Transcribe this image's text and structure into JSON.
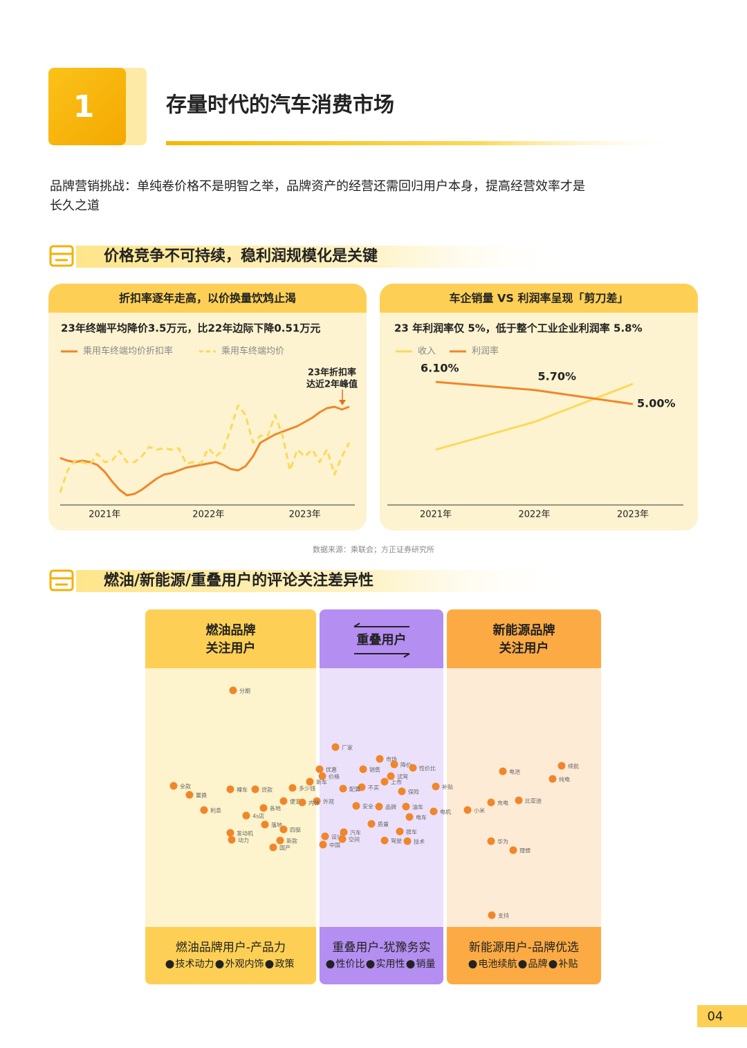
{
  "header": {
    "number": "1",
    "title": "存量时代的汽车消费市场"
  },
  "intro": [
    "品牌营销挑战：单纯卷价格不是明智之举，品牌资产的经营还需回归用户本身，提高经营效率才是",
    "长久之道"
  ],
  "section1": {
    "title": "价格竞争不可持续，稳利润规模化是关键"
  },
  "chart_data": [
    {
      "type": "line",
      "title": "折扣率逐年走高，以价换量饮鸩止渴",
      "subtitle": "23年终端平均降价3.5万元，比22年边际下降0.51万元",
      "annotation": [
        "23年折扣率",
        "达近2年峰值"
      ],
      "categories": [
        null,
        null,
        null,
        null,
        null,
        null,
        "2021年",
        null,
        null,
        null,
        null,
        null,
        null,
        null,
        null,
        null,
        null,
        null,
        null,
        null,
        "2022年",
        null,
        null,
        null,
        null,
        null,
        null,
        null,
        null,
        null,
        null,
        null,
        null,
        "2023年",
        null,
        null,
        null,
        null,
        null,
        null
      ],
      "ylim": [
        0,
        100
      ],
      "series": [
        {
          "name": "乘用车终端均价折扣率",
          "color": "#f0862a",
          "dash": false,
          "values": [
            34,
            32,
            31,
            32,
            31,
            29,
            24,
            17,
            11,
            7,
            8,
            11,
            15,
            19,
            22,
            23,
            25,
            27,
            28,
            29,
            30,
            31,
            29,
            26,
            25,
            28,
            35,
            45,
            48,
            51,
            53,
            55,
            57,
            60,
            63,
            67,
            70,
            71,
            69,
            71
          ]
        },
        {
          "name": "乘用车终端均价",
          "color": "#fbd95a",
          "dash": true,
          "values": [
            9,
            25,
            32,
            31,
            29,
            37,
            31,
            32,
            39,
            31,
            31,
            35,
            42,
            40,
            41,
            40,
            41,
            30,
            31,
            30,
            41,
            35,
            40,
            55,
            72,
            65,
            45,
            50,
            50,
            65,
            50,
            25,
            40,
            35,
            40,
            31,
            40,
            22,
            35,
            45
          ]
        }
      ]
    },
    {
      "type": "line",
      "title": "车企销量 VS 利润率呈现「剪刀差」",
      "subtitle": "23 年利润率仅 5%，低于整个工业企业利润率 5.8%",
      "categories": [
        "2021年",
        "2022年",
        "2023年"
      ],
      "ylim": [
        0,
        7.2
      ],
      "y2lim": [
        0,
        210
      ],
      "series": [
        {
          "name": "收入",
          "color": "#fbd95a",
          "axis": "y2",
          "values": [
            80,
            120,
            175
          ]
        },
        {
          "name": "利润率",
          "color": "#f0862a",
          "values": [
            6.1,
            5.7,
            5.0
          ],
          "value_labels": [
            "6.10%",
            "5.70%",
            "5.00%"
          ]
        }
      ]
    }
  ],
  "source": "数据来源：乘联会；方正证券研究所",
  "section2": {
    "title": "燃油/新能源/重叠用户的评论关注差异性"
  },
  "columns": [
    {
      "title": [
        "燃油品牌",
        "关注用户"
      ],
      "footer": "燃油品牌用户-产品力",
      "points": [
        "技术动力",
        "外观内饰",
        "政策"
      ]
    },
    {
      "title": [
        "重叠用户"
      ],
      "footer": "重叠用户-犹豫务实",
      "points": [
        "性价比",
        "实用性",
        "销量"
      ]
    },
    {
      "title": [
        "新能源品牌",
        "关注用户"
      ],
      "footer": "新能源用户-品牌优选",
      "points": [
        "电池续航",
        "品牌",
        "补贴"
      ]
    }
  ],
  "word_map": {
    "words": [
      "分期",
      "厂家",
      "全款",
      "置换",
      "利息",
      "裸车",
      "贷款",
      "多少钱",
      "便宜",
      "优惠",
      "价格",
      "新车",
      "市场",
      "降价",
      "性价比",
      "销售",
      "试驾",
      "上市",
      "补贴",
      "不买",
      "保险",
      "4s店",
      "落地",
      "发动机",
      "动力",
      "国产",
      "新款",
      "外观",
      "内饰",
      "汽车",
      "品牌",
      "电机",
      "小米",
      "电池",
      "续航",
      "纯电",
      "充电",
      "比亚迪",
      "华为",
      "理想",
      "支持",
      "油车",
      "电车",
      "技术",
      "驾驶",
      "设计",
      "中国",
      "空间",
      "质量",
      "配置",
      "各地",
      "四驱",
      "提车",
      "安全"
    ]
  },
  "page_number": "04"
}
